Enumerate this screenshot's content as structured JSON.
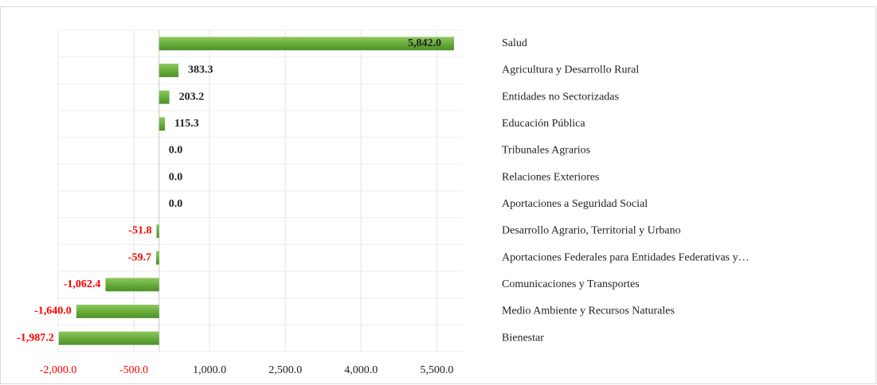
{
  "chart_data": {
    "type": "bar",
    "orientation": "horizontal",
    "categories": [
      "Salud",
      "Agricultura y Desarrollo Rural",
      "Entidades no Sectorizadas",
      "Educación Pública",
      "Tribunales Agrarios",
      "Relaciones Exteriores",
      "Aportaciones a Seguridad Social",
      "Desarrollo Agrario, Territorial y Urbano",
      "Aportaciones Federales para Entidades Federativas y…",
      "Comunicaciones y Transportes",
      "Medio Ambiente y Recursos Naturales",
      "Bienestar"
    ],
    "values": [
      5842.0,
      383.3,
      203.2,
      115.3,
      0.0,
      0.0,
      0.0,
      -51.8,
      -59.7,
      -1062.4,
      -1640.0,
      -1987.2
    ],
    "value_labels": [
      "5,842.0",
      "383.3",
      "203.2",
      "115.3",
      "0.0",
      "0.0",
      "0.0",
      "-51.8",
      "-59.7",
      "-1,062.4",
      "-1,640.0",
      "-1,987.2"
    ],
    "color": "#6aad3c",
    "negative_label_color": "#ff0000",
    "xlim": [
      -2000,
      6000
    ],
    "xticks": [
      {
        "value": -2000,
        "label": "-2,000.0"
      },
      {
        "value": -500,
        "label": "-500.0"
      },
      {
        "value": 1000,
        "label": "1,000.0"
      },
      {
        "value": 2500,
        "label": "2,500.0"
      },
      {
        "value": 4000,
        "label": "4,000.0"
      },
      {
        "value": 5500,
        "label": "5,500.0"
      }
    ],
    "grid": true
  }
}
